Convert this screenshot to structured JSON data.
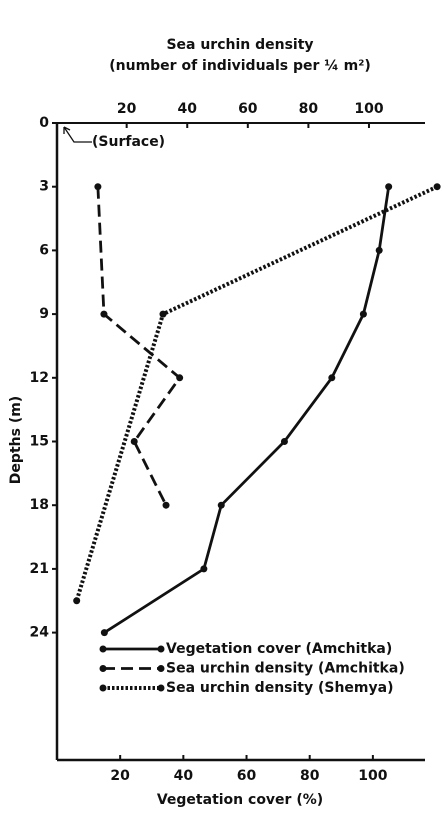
{
  "chart_data": {
    "type": "line",
    "x2label": [
      "Sea urchin density",
      "(number of individuals per ¼ m²)"
    ],
    "xlabel": "Vegetation cover (%)",
    "ylabel": "Depths (m)",
    "annotation": "(Surface)",
    "xlim": [
      0,
      116.5
    ],
    "xticks": [
      20,
      40,
      60,
      80,
      100
    ],
    "x2lim": [
      -3,
      118.5
    ],
    "x2ticks": [
      20,
      40,
      60,
      80,
      100
    ],
    "ylim": [
      0,
      30
    ],
    "yticks": [
      0,
      3,
      6,
      9,
      12,
      15,
      18,
      21,
      24
    ],
    "y_inverted": true,
    "series": [
      {
        "name": "Vegetation cover (Amchitka)",
        "color": "#111111",
        "style": "solid",
        "axis": "x",
        "x": [
          105,
          102,
          97,
          87,
          72,
          52,
          46.5,
          15
        ],
        "y": [
          3,
          6,
          9,
          12,
          15,
          18,
          21,
          24
        ]
      },
      {
        "name": "Sea urchin density (Amchitka)",
        "color": "#111111",
        "style": "dashed",
        "axis": "x2",
        "x": [
          10.5,
          12.5,
          37.5,
          22.5,
          33
        ],
        "y": [
          3,
          9,
          12,
          15,
          18
        ]
      },
      {
        "name": "Sea urchin density (Shemya)",
        "color": "#111111",
        "style": "dotted",
        "axis": "x2",
        "x": [
          122.5,
          32,
          3.5
        ],
        "y": [
          3,
          9,
          22.5
        ]
      }
    ]
  }
}
